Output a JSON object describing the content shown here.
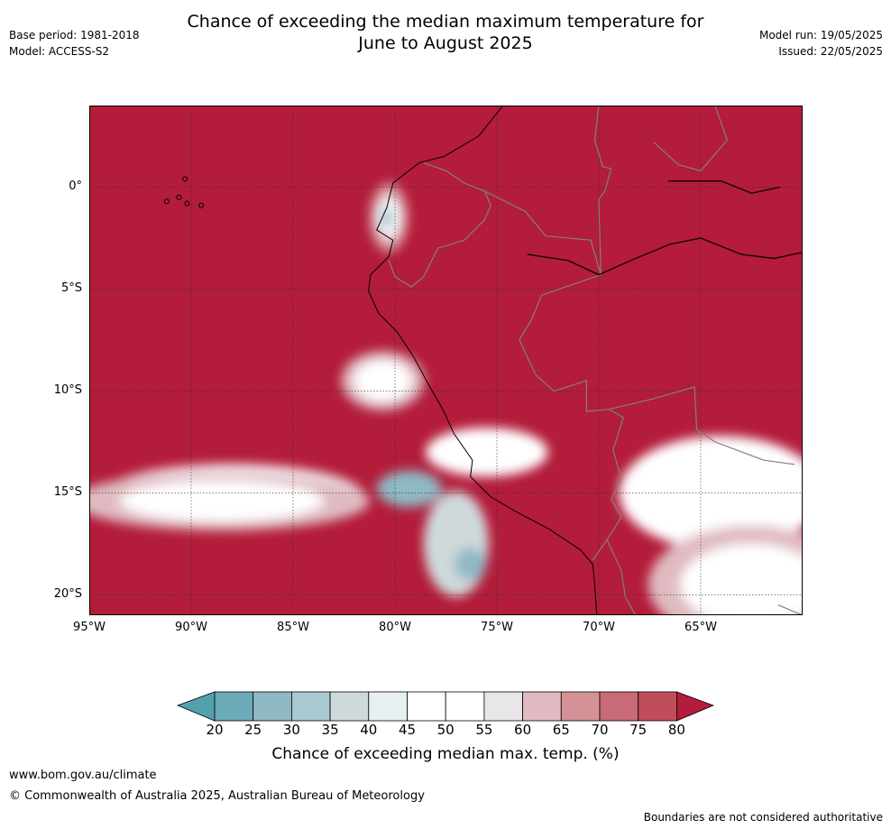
{
  "title": "Chance of exceeding the median maximum temperature for\nJune to August 2025",
  "meta_left": {
    "base_period": "Base period: 1981-2018",
    "model": "Model: ACCESS-S2"
  },
  "meta_right": {
    "model_run": "Model run: 19/05/2025",
    "issued": "Issued: 22/05/2025"
  },
  "map": {
    "lon_range": [
      -95,
      -60
    ],
    "lat_range": [
      -21,
      4
    ],
    "lat_ticks": [
      {
        "value": 0,
        "label": "0°"
      },
      {
        "value": -5,
        "label": "5°S"
      },
      {
        "value": -10,
        "label": "10°S"
      },
      {
        "value": -15,
        "label": "15°S"
      },
      {
        "value": -20,
        "label": "20°S"
      }
    ],
    "lon_ticks": [
      {
        "value": -95,
        "label": "95°W"
      },
      {
        "value": -90,
        "label": "90°W"
      },
      {
        "value": -85,
        "label": "85°W"
      },
      {
        "value": -80,
        "label": "80°W"
      },
      {
        "value": -75,
        "label": "75°W"
      },
      {
        "value": -70,
        "label": "70°W"
      },
      {
        "value": -65,
        "label": "65°W"
      }
    ],
    "coastline": [
      [
        -74.7,
        4
      ],
      [
        -75.9,
        2.5
      ],
      [
        -77.6,
        1.5
      ],
      [
        -78.8,
        1.2
      ],
      [
        -80.1,
        0.2
      ],
      [
        -80.4,
        -1
      ],
      [
        -80.9,
        -2.1
      ],
      [
        -80.1,
        -2.6
      ],
      [
        -80.3,
        -3.4
      ],
      [
        -81.2,
        -4.3
      ],
      [
        -81.3,
        -5.1
      ],
      [
        -80.8,
        -6.2
      ],
      [
        -79.9,
        -7.1
      ],
      [
        -79.1,
        -8.3
      ],
      [
        -78.4,
        -9.6
      ],
      [
        -77.6,
        -11
      ],
      [
        -77.1,
        -12.1
      ],
      [
        -76.2,
        -13.4
      ],
      [
        -76.3,
        -14.2
      ],
      [
        -75.3,
        -15.2
      ],
      [
        -74.1,
        -15.9
      ],
      [
        -72.4,
        -16.8
      ],
      [
        -70.9,
        -17.8
      ],
      [
        -70.3,
        -18.5
      ],
      [
        -70.2,
        -19.5
      ],
      [
        -70.1,
        -21
      ]
    ],
    "caribbean_coast": [
      [
        -66.6,
        0.3
      ],
      [
        -64,
        0.3
      ],
      [
        -62.5,
        -0.3
      ],
      [
        -61.1,
        0
      ]
    ],
    "amazon_river": [
      [
        -73.5,
        -3.3
      ],
      [
        -71.5,
        -3.6
      ],
      [
        -70,
        -4.3
      ],
      [
        -68.2,
        -3.5
      ],
      [
        -66.5,
        -2.8
      ],
      [
        -65,
        -2.5
      ],
      [
        -63,
        -3.3
      ],
      [
        -61.4,
        -3.5
      ],
      [
        -60,
        -3.2
      ]
    ],
    "borders": [
      [
        [
          -78.6,
          1.2
        ],
        [
          -77.5,
          0.8
        ],
        [
          -76.6,
          0.2
        ],
        [
          -75.6,
          -0.2
        ],
        [
          -75.3,
          -0.9
        ],
        [
          -75.6,
          -1.6
        ],
        [
          -76.6,
          -2.6
        ],
        [
          -77.9,
          -3
        ],
        [
          -78.6,
          -4.4
        ],
        [
          -79.2,
          -4.9
        ],
        [
          -80,
          -4.4
        ],
        [
          -80.3,
          -3.6
        ]
      ],
      [
        [
          -75.6,
          -0.2
        ],
        [
          -73.6,
          -1.2
        ],
        [
          -72.6,
          -2.4
        ],
        [
          -70.4,
          -2.6
        ],
        [
          -69.9,
          -4.3
        ],
        [
          -72.8,
          -5.3
        ],
        [
          -73.3,
          -6.5
        ],
        [
          -73.9,
          -7.5
        ],
        [
          -73.1,
          -9.2
        ],
        [
          -72.2,
          -10
        ],
        [
          -70.6,
          -9.5
        ],
        [
          -70.6,
          -11
        ],
        [
          -69.5,
          -10.9
        ],
        [
          -68.8,
          -11.3
        ],
        [
          -69.3,
          -12.9
        ],
        [
          -68.9,
          -14.3
        ],
        [
          -69.4,
          -15.3
        ],
        [
          -68.9,
          -16.2
        ],
        [
          -69.6,
          -17.3
        ],
        [
          -70.3,
          -18.3
        ]
      ],
      [
        [
          -69.5,
          -10.9
        ],
        [
          -67.4,
          -10.4
        ],
        [
          -65.3,
          -9.8
        ],
        [
          -65.2,
          -11.9
        ],
        [
          -64.3,
          -12.5
        ],
        [
          -61.9,
          -13.4
        ],
        [
          -60.4,
          -13.6
        ]
      ],
      [
        [
          -69.6,
          -17.3
        ],
        [
          -68.9,
          -18.8
        ],
        [
          -68.7,
          -20.1
        ],
        [
          -68.2,
          -21
        ]
      ],
      [
        [
          -70,
          4
        ],
        [
          -70.2,
          2.3
        ],
        [
          -69.8,
          1
        ],
        [
          -69.4,
          0.9
        ],
        [
          -69.7,
          -0.2
        ],
        [
          -70,
          -0.6
        ],
        [
          -69.9,
          -4.3
        ]
      ],
      [
        [
          -67.3,
          2.2
        ],
        [
          -66.1,
          1.1
        ],
        [
          -65,
          0.8
        ],
        [
          -63.7,
          2.3
        ],
        [
          -64.3,
          4
        ]
      ],
      [
        [
          -61.2,
          -20.5
        ],
        [
          -60,
          -21
        ]
      ]
    ],
    "galapagos": [
      [
        -91.2,
        -0.7
      ],
      [
        -90.6,
        -0.5
      ],
      [
        -90.2,
        -0.8
      ],
      [
        -89.5,
        -0.9
      ],
      [
        -90.3,
        0.4
      ]
    ],
    "warm_zones": [
      {
        "lon": -88,
        "lat": -15.2,
        "rlon": 6.5,
        "rlat": 1.6,
        "level": 2
      },
      {
        "lon": -88.5,
        "lat": -15.4,
        "rlon": 5,
        "rlat": 1.0,
        "level": 1
      },
      {
        "lon": -80.6,
        "lat": -9.5,
        "rlon": 1.4,
        "rlat": 1.0,
        "level": 1
      },
      {
        "lon": -75.5,
        "lat": -13,
        "rlon": 3,
        "rlat": 1.2,
        "level": 2
      },
      {
        "lon": -64,
        "lat": -15,
        "rlon": 5,
        "rlat": 2.8,
        "level": 2
      },
      {
        "lon": -62.5,
        "lat": -19.5,
        "rlon": 3.5,
        "rlat": 2,
        "level": 1
      },
      {
        "lon": -80.3,
        "lat": -1.5,
        "rlon": 0.5,
        "rlat": 0.9,
        "level": 0
      }
    ],
    "cool_zones": [
      {
        "lon": -79.3,
        "lat": -14.8,
        "rlon": 1.6,
        "rlat": 0.9,
        "level": 1
      },
      {
        "lon": -77,
        "lat": -17.5,
        "rlon": 1.6,
        "rlat": 2.6,
        "level": 0
      },
      {
        "lon": -76.3,
        "lat": -18.5,
        "rlon": 0.8,
        "rlat": 0.8,
        "level": 1
      },
      {
        "lon": -80.4,
        "lat": -1.5,
        "rlon": 0.25,
        "rlat": 0.5,
        "level": 1
      }
    ]
  },
  "colorbar": {
    "ticks": [
      "20",
      "25",
      "30",
      "35",
      "40",
      "45",
      "50",
      "55",
      "60",
      "65",
      "70",
      "75",
      "80"
    ],
    "colors": [
      "#6aabb7",
      "#8fb9c4",
      "#aac8cf",
      "#cfd9dc",
      "#e8eff1",
      "#ffffff",
      "#ffffff",
      "#e8e6e8",
      "#dfbbc1",
      "#d69197",
      "#c86b76",
      "#c04d5a"
    ],
    "low_color": "#53a1ae",
    "high_color": "#b31c3a",
    "label": "Chance of exceeding median max. temp. (%)"
  },
  "colors": {
    "background": "#b31c3a",
    "coast": "#000000",
    "border": "#808080",
    "grid": "#333333"
  },
  "footer": {
    "url": "www.bom.gov.au/climate",
    "copyright": "© Commonwealth of Australia 2025, Australian Bureau of Meteorology",
    "note": "Boundaries are not considered authoritative"
  }
}
